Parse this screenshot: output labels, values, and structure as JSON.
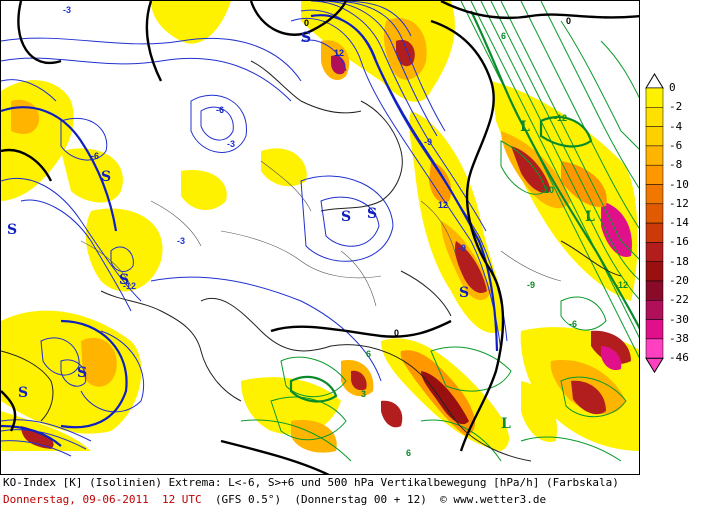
{
  "map": {
    "labels_S": [
      "S",
      "S",
      "S",
      "S",
      "S",
      "S",
      "S",
      "S",
      "S"
    ],
    "labels_L": [
      "L",
      "L",
      "L"
    ],
    "isoline_values": [
      "-3",
      "-3",
      "-3",
      "-6",
      "-6",
      "-9",
      "-9",
      "-12",
      "0",
      "0",
      "12",
      "12",
      "-10",
      "-12",
      "6",
      "6",
      "6",
      "-6",
      "-9",
      "-12",
      "3",
      "0"
    ]
  },
  "colorbar": {
    "ticks": [
      "0",
      "-2",
      "-4",
      "-6",
      "-8",
      "-10",
      "-12",
      "-14",
      "-16",
      "-18",
      "-20",
      "-22",
      "-30",
      "-38",
      "-46"
    ],
    "colors": [
      "#ffffff",
      "#fff200",
      "#ffe100",
      "#ffd000",
      "#ffb400",
      "#ff9800",
      "#f07800",
      "#e05a00",
      "#cc3a0a",
      "#b21e1e",
      "#9a1010",
      "#8a0a2a",
      "#b0105a",
      "#e0108a",
      "#ff40c0"
    ]
  },
  "footer": {
    "line1": "KO-Index [K] (Isolinien) Extrema: L<-6, S>+6 und 500 hPa Vertikalbewegung [hPa/h] (Farbskala)",
    "line2_date": "Donnerstag, 09-06-2011  12 UTC",
    "line2_model": "(GFS 0.5°)  (Donnerstag 00 + 12)",
    "line2_copyright": "© www.wetter3.de"
  }
}
